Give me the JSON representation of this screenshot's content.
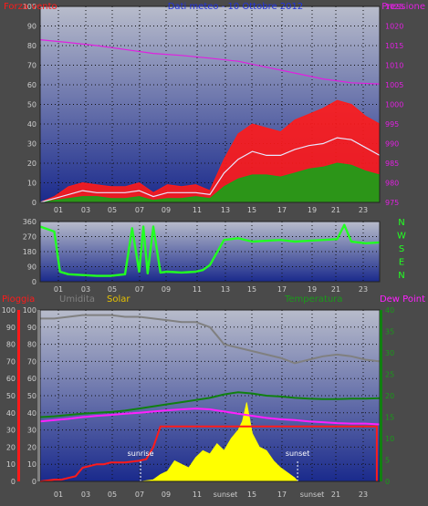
{
  "colors": {
    "background": "#4a4a4a",
    "plot_top": "#b8bccb",
    "plot_bottom": "#1a2a8c",
    "wind": "#ff1a1a",
    "gust_avg": "#e8e8ff",
    "wind_min": "#17a317",
    "pressure": "#e020e0",
    "direction": "#22ff22",
    "rain": "#ff1a1a",
    "humidity": "#808080",
    "solar": "#ffff00",
    "temperature": "#108010",
    "dewpoint": "#ff20ff",
    "title": "#2233dd"
  },
  "chart_data": [
    {
      "type": "line",
      "panel": "wind_pressure",
      "title": "Dati meteo - 10 Ottobre 2012",
      "left_label": "Forza vento",
      "right_label": "Pressione",
      "x_ticks": [
        "01",
        "03",
        "05",
        "07",
        "09",
        "11",
        "13",
        "15",
        "17",
        "19",
        "21",
        "23"
      ],
      "y_left_ticks": [
        "0",
        "10",
        "20",
        "30",
        "40",
        "50",
        "60",
        "70",
        "80",
        "90",
        "100"
      ],
      "y_left_range": [
        0,
        100
      ],
      "y_right_ticks": [
        "975",
        "980",
        "985",
        "990",
        "995",
        "1000",
        "1005",
        "1010",
        "1015",
        "1020",
        "1025"
      ],
      "y_right_range": [
        975,
        1025
      ],
      "series": [
        {
          "key": "pressure",
          "x": [
            0,
            2,
            4,
            6,
            8,
            10,
            12,
            14,
            16,
            18,
            20,
            22,
            24
          ],
          "values": [
            1016.5,
            1015.8,
            1015.0,
            1014.0,
            1013.0,
            1012.5,
            1011.8,
            1011.0,
            1009.5,
            1008.0,
            1006.5,
            1005.5,
            1005.2
          ]
        },
        {
          "key": "wind_max",
          "x": [
            0,
            1,
            2,
            3,
            4,
            5,
            6,
            7,
            8,
            9,
            10,
            11,
            12,
            13,
            14,
            15,
            16,
            17,
            18,
            19,
            20,
            21,
            22,
            23,
            24
          ],
          "values": [
            0,
            3,
            8,
            10,
            9,
            8,
            8,
            10,
            5,
            9,
            8,
            9,
            6,
            22,
            35,
            40,
            38,
            36,
            42,
            45,
            48,
            52,
            50,
            44,
            40
          ]
        },
        {
          "key": "wind_avg",
          "x": [
            0,
            1,
            2,
            3,
            4,
            5,
            6,
            7,
            8,
            9,
            10,
            11,
            12,
            13,
            14,
            15,
            16,
            17,
            18,
            19,
            20,
            21,
            22,
            23,
            24
          ],
          "values": [
            0,
            2,
            4,
            6,
            5,
            5,
            5,
            6,
            3,
            5,
            5,
            5,
            4,
            15,
            22,
            26,
            24,
            24,
            27,
            29,
            30,
            33,
            32,
            28,
            24
          ]
        },
        {
          "key": "wind_min",
          "x": [
            0,
            1,
            2,
            3,
            4,
            5,
            6,
            7,
            8,
            9,
            10,
            11,
            12,
            13,
            14,
            15,
            16,
            17,
            18,
            19,
            20,
            21,
            22,
            23,
            24
          ],
          "values": [
            0,
            1,
            2,
            3,
            3,
            2,
            2,
            3,
            1,
            2,
            2,
            3,
            2,
            8,
            12,
            14,
            14,
            13,
            15,
            17,
            18,
            20,
            19,
            16,
            14
          ]
        }
      ]
    },
    {
      "type": "line",
      "panel": "direction",
      "x_ticks": [
        "01",
        "03",
        "05",
        "07",
        "09",
        "11",
        "13",
        "15",
        "17",
        "19",
        "21",
        "23"
      ],
      "y_ticks": [
        "0",
        "90",
        "180",
        "270",
        "360"
      ],
      "y_range": [
        0,
        360
      ],
      "cardinal_labels": [
        "N",
        "W",
        "S",
        "E",
        "N"
      ],
      "series": [
        {
          "key": "direction",
          "x": [
            0,
            1,
            1.4,
            2,
            3,
            4,
            5,
            6,
            6.5,
            7,
            7.3,
            7.6,
            8,
            8.5,
            9,
            10,
            11,
            11.5,
            12,
            13,
            14,
            15,
            16,
            17,
            18,
            19,
            20,
            21,
            21.5,
            22,
            23,
            24
          ],
          "values": [
            330,
            300,
            60,
            45,
            40,
            35,
            35,
            45,
            320,
            60,
            330,
            50,
            330,
            55,
            60,
            55,
            60,
            70,
            100,
            250,
            260,
            240,
            245,
            250,
            240,
            245,
            250,
            255,
            340,
            240,
            230,
            235
          ]
        }
      ]
    },
    {
      "type": "line",
      "panel": "rain_humidity_temp",
      "labels": {
        "rain": "Pioggia",
        "humidity": "Umidita",
        "solar": "Solar",
        "temperature": "Temperatura",
        "dewpoint": "Dew Point"
      },
      "x_ticks": [
        "01",
        "03",
        "05",
        "07",
        "09",
        "11",
        "sunset",
        "15",
        "17",
        "sunset",
        "21",
        "23"
      ],
      "y_left_ticks": [
        "0",
        "10",
        "20",
        "30",
        "40",
        "50",
        "60",
        "70",
        "80",
        "90",
        "100"
      ],
      "y_left_range": [
        0,
        100
      ],
      "y_right_ticks": [
        "0",
        "5",
        "10",
        "15",
        "20",
        "25",
        "30",
        "35",
        "40"
      ],
      "y_right_range": [
        0,
        40
      ],
      "annotations": [
        {
          "text": "sunrise",
          "x": 7.1
        },
        {
          "text": "sunset",
          "x": 18.2
        }
      ],
      "series": [
        {
          "key": "humidity",
          "x": [
            0,
            1,
            2,
            3,
            4,
            5,
            6,
            7,
            8,
            9,
            10,
            11,
            12,
            12.5,
            13,
            14,
            15,
            16,
            17,
            18,
            19,
            20,
            21,
            22,
            23,
            24
          ],
          "values": [
            95,
            95,
            96,
            97,
            97,
            97,
            96,
            96,
            95,
            94,
            93,
            93,
            90,
            85,
            80,
            78,
            76,
            74,
            72,
            69,
            71,
            73,
            74,
            73,
            71,
            70
          ]
        },
        {
          "key": "temperature",
          "x": [
            0,
            1,
            2,
            3,
            4,
            5,
            6,
            7,
            8,
            9,
            10,
            11,
            12,
            13,
            14,
            15,
            16,
            17,
            18,
            19,
            20,
            21,
            22,
            23,
            24
          ],
          "values": [
            15.0,
            15.2,
            15.5,
            15.8,
            16.0,
            16.2,
            16.5,
            17.0,
            17.5,
            18.0,
            18.5,
            19.0,
            19.5,
            20.3,
            20.8,
            20.5,
            20.0,
            19.8,
            19.5,
            19.3,
            19.2,
            19.2,
            19.3,
            19.3,
            19.4
          ]
        },
        {
          "key": "dewpoint",
          "x": [
            0,
            1,
            2,
            3,
            4,
            5,
            6,
            7,
            8,
            9,
            10,
            11,
            12,
            13,
            14,
            15,
            16,
            17,
            18,
            19,
            20,
            21,
            22,
            23,
            24
          ],
          "values": [
            14.0,
            14.3,
            14.6,
            15.0,
            15.3,
            15.5,
            15.8,
            16.0,
            16.3,
            16.6,
            16.8,
            17.0,
            16.8,
            16.3,
            15.8,
            15.3,
            14.8,
            14.5,
            14.3,
            14.0,
            13.8,
            13.6,
            13.5,
            13.5,
            13.3
          ]
        },
        {
          "key": "rain",
          "x": [
            0,
            1,
            1.5,
            2,
            2.5,
            3,
            3.5,
            4,
            4.5,
            5,
            6,
            7,
            7.5,
            8,
            8.5,
            9,
            23,
            23.8,
            23.8
          ],
          "values": [
            0,
            1,
            1,
            2,
            3,
            8,
            9,
            10,
            10,
            11,
            11,
            12,
            13,
            20,
            32,
            32,
            32,
            32,
            0
          ]
        },
        {
          "key": "solar",
          "x": [
            7.1,
            8,
            8.5,
            9,
            9.5,
            10,
            10.5,
            11,
            11.5,
            12,
            12.5,
            13,
            13.5,
            14,
            14.3,
            14.6,
            15,
            15.5,
            16,
            16.5,
            17,
            17.5,
            18,
            18.2
          ],
          "values": [
            0,
            1,
            4,
            6,
            12,
            10,
            8,
            14,
            18,
            16,
            22,
            18,
            25,
            30,
            35,
            46,
            28,
            20,
            18,
            12,
            8,
            5,
            2,
            0
          ]
        }
      ]
    }
  ]
}
